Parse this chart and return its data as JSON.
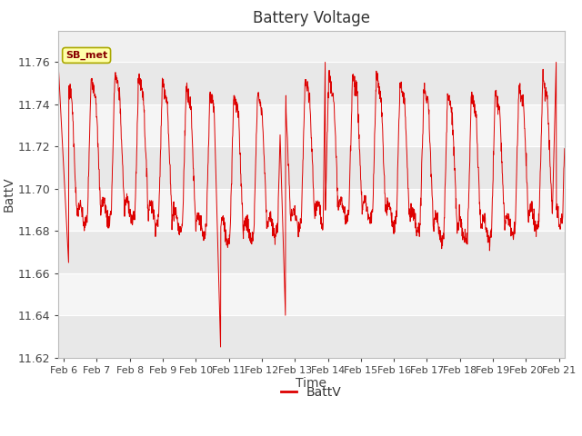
{
  "title": "Battery Voltage",
  "xlabel": "Time",
  "ylabel": "BattV",
  "legend_label": "BattV",
  "line_color": "#dd0000",
  "annotation_text": "SB_met",
  "annotation_bg": "#ffffaa",
  "annotation_border": "#aaa800",
  "ylim": [
    11.62,
    11.775
  ],
  "yticks": [
    11.62,
    11.64,
    11.66,
    11.68,
    11.7,
    11.72,
    11.74,
    11.76
  ],
  "grid_color": "#ffffff",
  "bg_inner_light": "#f0f0f0",
  "bg_inner_dark": "#e0e0e0",
  "bg_outer": "#ffffff",
  "x_start": 5.83,
  "x_end": 21.17,
  "xtick_positions": [
    6,
    7,
    8,
    9,
    10,
    11,
    12,
    13,
    14,
    15,
    16,
    17,
    18,
    19,
    20,
    21
  ],
  "xtick_labels": [
    "Feb 6",
    "Feb 7",
    "Feb 8",
    "Feb 9",
    "Feb 10",
    "Feb 11",
    "Feb 12",
    "Feb 13",
    "Feb 14",
    "Feb 15",
    "Feb 16",
    "Feb 17",
    "Feb 18",
    "Feb 19",
    "Feb 20",
    "Feb 21"
  ]
}
